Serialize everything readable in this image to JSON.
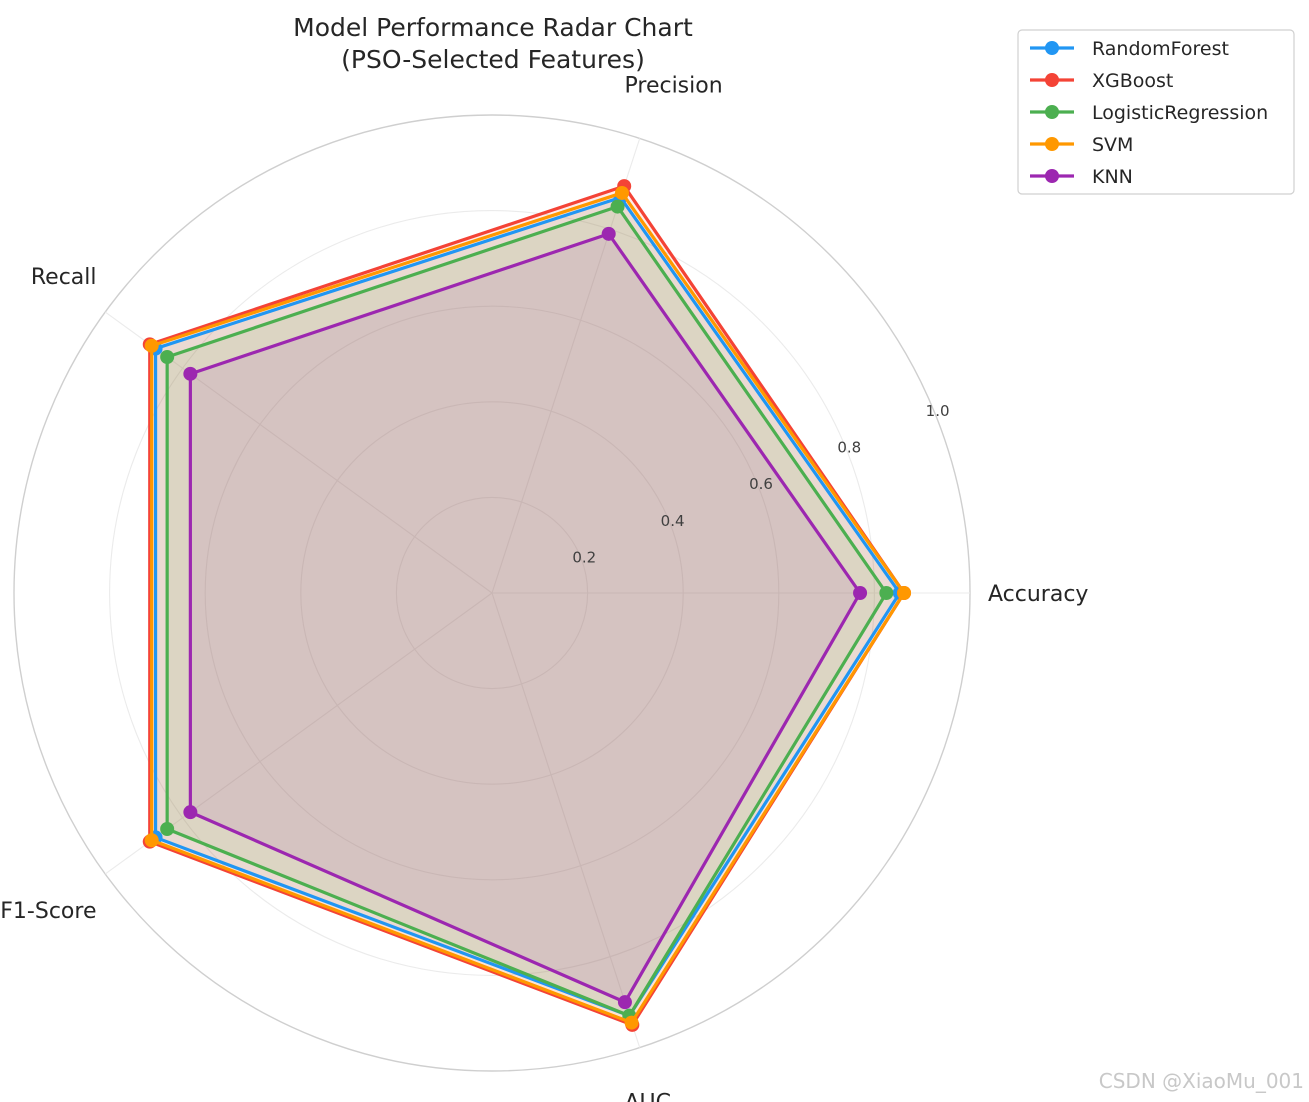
{
  "chart_data": {
    "type": "radar",
    "title": [
      "Model Performance Radar Chart",
      "(PSO-Selected Features)"
    ],
    "axes": [
      "Accuracy",
      "Precision",
      "Recall",
      "F1-Score",
      "AUC"
    ],
    "rlim": [
      0,
      1.0
    ],
    "rticks": [
      "0.2",
      "0.4",
      "0.6",
      "0.8",
      "1.0"
    ],
    "rtick_values": [
      0.2,
      0.4,
      0.6,
      0.8,
      1.0
    ],
    "grid": true,
    "legend_position": "top-right",
    "series": [
      {
        "name": "RandomForest",
        "color": "#2196F3",
        "values": [
          0.853,
          0.87,
          0.87,
          0.87,
          0.93
        ]
      },
      {
        "name": "XGBoost",
        "color": "#F44336",
        "values": [
          0.862,
          0.895,
          0.885,
          0.885,
          0.95
        ]
      },
      {
        "name": "LogisticRegression",
        "color": "#4CAF50",
        "values": [
          0.825,
          0.85,
          0.84,
          0.84,
          0.93
        ]
      },
      {
        "name": "SVM",
        "color": "#FF9800",
        "values": [
          0.862,
          0.88,
          0.88,
          0.88,
          0.945
        ]
      },
      {
        "name": "KNN",
        "color": "#9C27B0",
        "values": [
          0.77,
          0.79,
          0.78,
          0.78,
          0.9
        ]
      }
    ]
  },
  "watermark": "CSDN @XiaoMu_001"
}
